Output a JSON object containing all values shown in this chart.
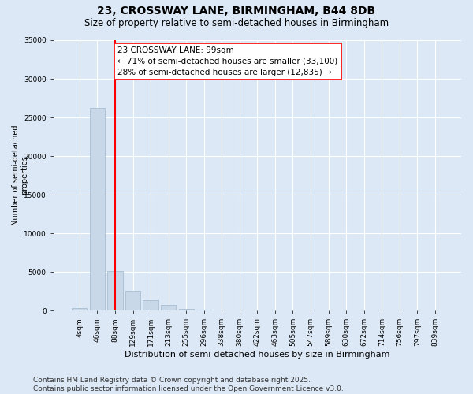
{
  "title": "23, CROSSWAY LANE, BIRMINGHAM, B44 8DB",
  "subtitle": "Size of property relative to semi-detached houses in Birmingham",
  "xlabel": "Distribution of semi-detached houses by size in Birmingham",
  "ylabel": "Number of semi-detached\nproperties",
  "categories": [
    "4sqm",
    "46sqm",
    "88sqm",
    "129sqm",
    "171sqm",
    "213sqm",
    "255sqm",
    "296sqm",
    "338sqm",
    "380sqm",
    "422sqm",
    "463sqm",
    "505sqm",
    "547sqm",
    "589sqm",
    "630sqm",
    "672sqm",
    "714sqm",
    "756sqm",
    "797sqm",
    "839sqm"
  ],
  "values": [
    350,
    26200,
    5100,
    2600,
    1300,
    700,
    200,
    60,
    20,
    10,
    5,
    2,
    1,
    0,
    0,
    0,
    0,
    0,
    0,
    0,
    0
  ],
  "bar_color": "#c8d8e8",
  "bar_edge_color": "#a0b8cc",
  "property_bar_index": 2,
  "vline_color": "red",
  "annotation_text": "23 CROSSWAY LANE: 99sqm\n← 71% of semi-detached houses are smaller (33,100)\n28% of semi-detached houses are larger (12,835) →",
  "annotation_box_color": "white",
  "annotation_box_edge": "red",
  "ylim": [
    0,
    35000
  ],
  "yticks": [
    0,
    5000,
    10000,
    15000,
    20000,
    25000,
    30000,
    35000
  ],
  "background_color": "#dce8f5",
  "plot_bg_color": "#dce8f5",
  "footer": "Contains HM Land Registry data © Crown copyright and database right 2025.\nContains public sector information licensed under the Open Government Licence v3.0.",
  "title_fontsize": 10,
  "subtitle_fontsize": 8.5,
  "annotation_fontsize": 7.5,
  "ylabel_fontsize": 7,
  "xlabel_fontsize": 8,
  "footer_fontsize": 6.5,
  "tick_fontsize": 6.5
}
